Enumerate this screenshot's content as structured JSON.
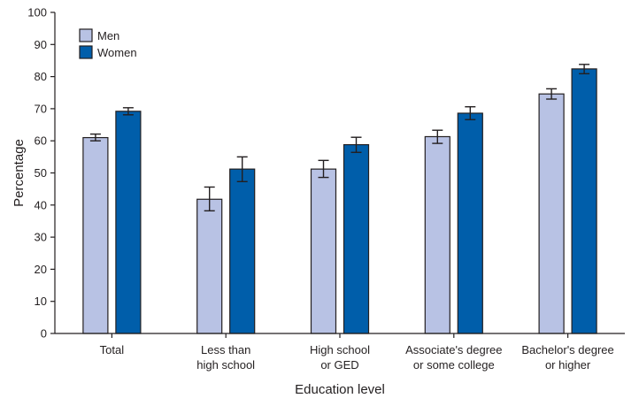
{
  "chart_data": {
    "type": "bar",
    "title": "",
    "xlabel": "Education level",
    "ylabel": "Percentage",
    "ylim": [
      0,
      100
    ],
    "yticks": [
      0,
      10,
      20,
      30,
      40,
      50,
      60,
      70,
      80,
      90,
      100
    ],
    "grid": false,
    "legend_position": "top-left",
    "categories": [
      [
        "Total"
      ],
      [
        "Less than",
        "high school"
      ],
      [
        "High school",
        "or GED"
      ],
      [
        "Associate's degree",
        "or some college"
      ],
      [
        "Bachelor's degree",
        "or higher"
      ]
    ],
    "series": [
      {
        "name": "Men",
        "color": "#b8c2e4",
        "values": [
          61.0,
          41.8,
          51.2,
          61.3,
          74.6
        ],
        "error_low": [
          60.0,
          38.2,
          48.6,
          59.2,
          73.0
        ],
        "error_high": [
          62.1,
          45.6,
          53.9,
          63.3,
          76.2
        ]
      },
      {
        "name": "Women",
        "color": "#005eaa",
        "values": [
          69.2,
          51.2,
          58.8,
          68.6,
          82.4
        ],
        "error_low": [
          68.1,
          47.3,
          56.4,
          66.6,
          80.9
        ],
        "error_high": [
          70.3,
          55.0,
          61.1,
          70.6,
          83.8
        ]
      }
    ]
  }
}
